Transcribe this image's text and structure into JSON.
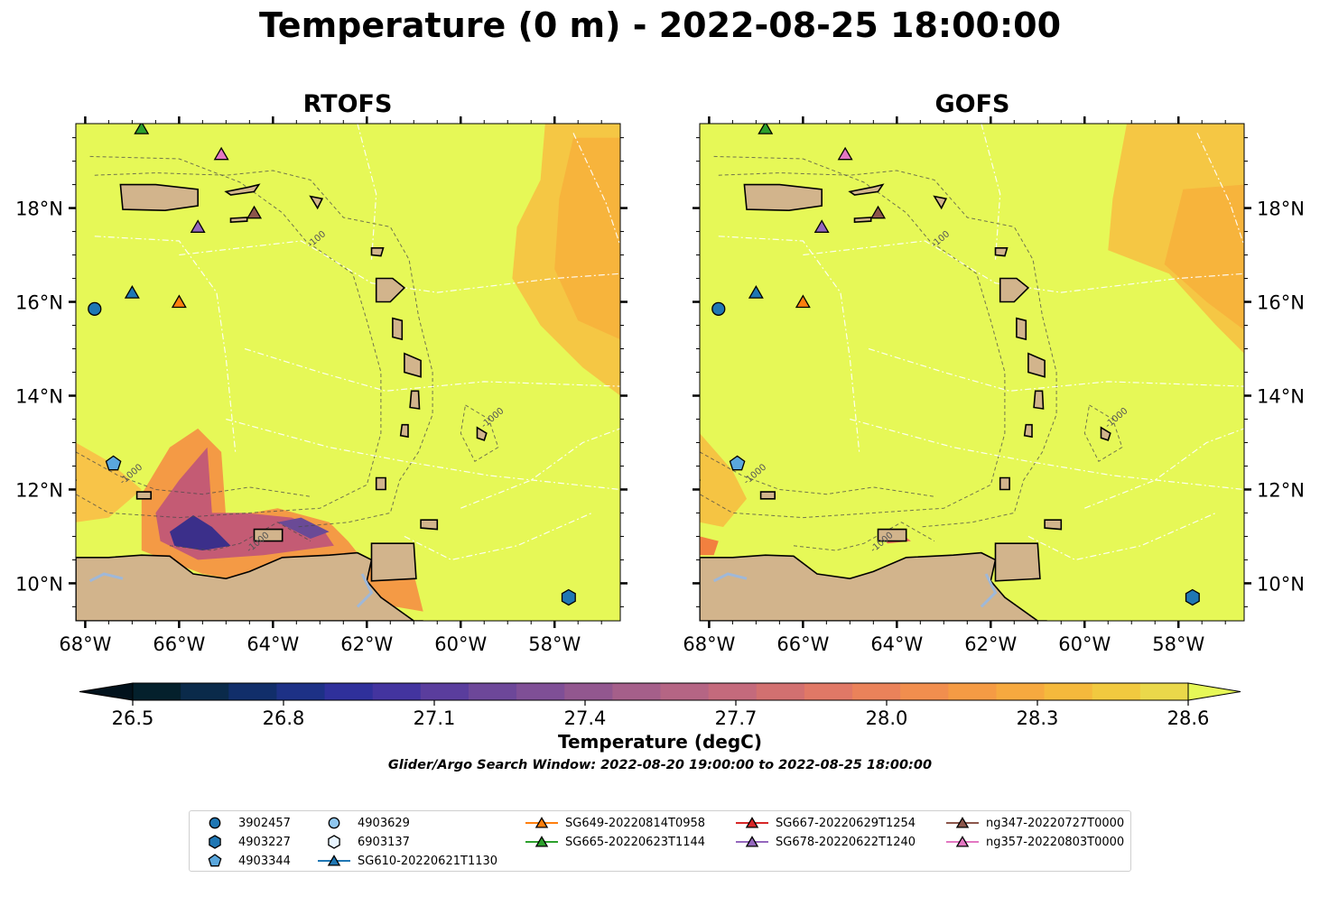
{
  "title": "Temperature (0 m) - 2022-08-25 18:00:00",
  "panels": [
    {
      "id": "rtofs",
      "title": "RTOFS"
    },
    {
      "id": "gofs",
      "title": "GOFS"
    }
  ],
  "axes": {
    "x_ticks": [
      "68°W",
      "66°W",
      "64°W",
      "62°W",
      "60°W",
      "58°W"
    ],
    "x_tick_values": [
      -68,
      -66,
      -64,
      -62,
      -60,
      -58
    ],
    "y_ticks": [
      "18°N",
      "16°N",
      "14°N",
      "12°N",
      "10°N"
    ],
    "y_tick_values": [
      18,
      16,
      14,
      12,
      10
    ],
    "xlim": [
      -68.2,
      -56.6
    ],
    "ylim": [
      9.2,
      19.8
    ]
  },
  "colorbar": {
    "label": "Temperature (degC)",
    "ticks": [
      "26.5",
      "26.8",
      "27.1",
      "27.4",
      "27.7",
      "28.0",
      "28.3",
      "28.6"
    ],
    "tick_values": [
      26.5,
      26.8,
      27.1,
      27.4,
      27.7,
      28.0,
      28.3,
      28.6
    ],
    "range": [
      26.5,
      28.6
    ],
    "extend": "both",
    "colormap": "thermal"
  },
  "search_window": "Glider/Argo Search Window: 2022-08-20 19:00:00 to 2022-08-25 18:00:00",
  "contour_labels": [
    "-100",
    "-1000"
  ],
  "colors": {
    "land": "#d2b48c",
    "ocean_bg": "#e6f857",
    "warm": "#f7b13c",
    "cool": "#3b2f8a",
    "lake": "#9fb8d8"
  },
  "chart_data": {
    "type": "map",
    "title": "Temperature (0 m) - 2022-08-25 18:00:00",
    "xlabel": "",
    "ylabel": "",
    "xlim": [
      -68.2,
      -56.6
    ],
    "ylim": [
      9.2,
      19.8
    ],
    "grid": false,
    "legend_position": "bottom",
    "markers": [
      {
        "name": "3902457",
        "shape": "circle",
        "color": "#1f77b4",
        "lon": -67.8,
        "lat": 15.85
      },
      {
        "name": "4903227",
        "shape": "hexagon",
        "color": "#1f77b4",
        "lon": -57.7,
        "lat": 9.7
      },
      {
        "name": "4903344",
        "shape": "pentagon",
        "color": "#5aa7dd",
        "lon": -67.4,
        "lat": 12.55
      },
      {
        "name": "SG610-20220621T1130",
        "shape": "triangle",
        "color": "#1f77b4",
        "lon": -67.0,
        "lat": 16.2
      },
      {
        "name": "SG649-20220814T0958",
        "shape": "triangle",
        "color": "#ff7f0e",
        "lon": -66.0,
        "lat": 16.0
      },
      {
        "name": "SG665-20220623T1144",
        "shape": "triangle",
        "color": "#2ca02c",
        "lon": -66.8,
        "lat": 19.7
      },
      {
        "name": "SG678-20220622T1240",
        "shape": "triangle",
        "color": "#9467bd",
        "lon": -65.6,
        "lat": 17.6
      },
      {
        "name": "ng347-20220727T0000",
        "shape": "triangle",
        "color": "#8c564b",
        "lon": -64.4,
        "lat": 17.9
      },
      {
        "name": "ng357-20220803T0000",
        "shape": "triangle",
        "color": "#e377c2",
        "lon": -65.1,
        "lat": 19.15
      }
    ],
    "legend": [
      {
        "name": "3902457",
        "shape": "circle",
        "color": "#1f77b4",
        "line": false
      },
      {
        "name": "4903227",
        "shape": "hexagon",
        "color": "#1f77b4",
        "line": false
      },
      {
        "name": "4903344",
        "shape": "pentagon",
        "color": "#5aa7dd",
        "line": false
      },
      {
        "name": "4903629",
        "shape": "circle",
        "color": "#8fc6ee",
        "line": false
      },
      {
        "name": "6903137",
        "shape": "hexagon",
        "color": "#e8f4ff",
        "line": false
      },
      {
        "name": "SG610-20220621T1130",
        "shape": "triangle",
        "color": "#1f77b4",
        "line": true
      },
      {
        "name": "SG649-20220814T0958",
        "shape": "triangle",
        "color": "#ff7f0e",
        "line": true
      },
      {
        "name": "SG665-20220623T1144",
        "shape": "triangle",
        "color": "#2ca02c",
        "line": true
      },
      {
        "name": "SG667-20220629T1254",
        "shape": "triangle",
        "color": "#d62728",
        "line": true
      },
      {
        "name": "SG678-20220622T1240",
        "shape": "triangle",
        "color": "#9467bd",
        "line": true
      },
      {
        "name": "ng347-20220727T0000",
        "shape": "triangle",
        "color": "#8c564b",
        "line": true
      },
      {
        "name": "ng357-20220803T0000",
        "shape": "triangle",
        "color": "#e377c2",
        "line": true
      }
    ]
  }
}
